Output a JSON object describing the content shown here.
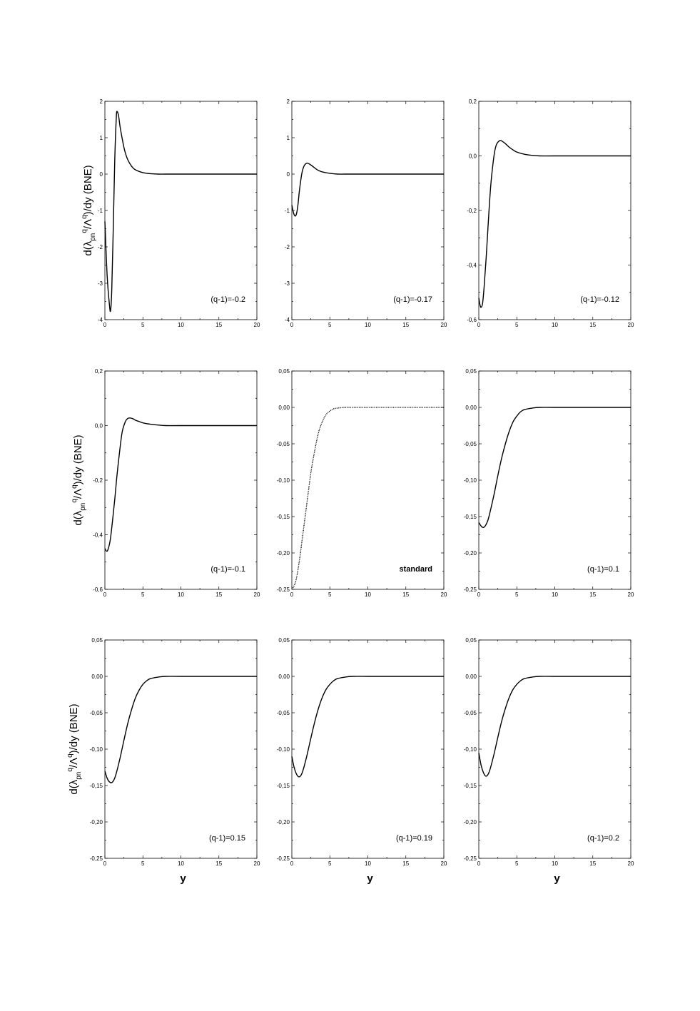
{
  "y_axis_labels": [
    {
      "row": 0,
      "text": "d(λpn^q/Λ^q)/dy  (BNE)",
      "main": "d(λ",
      "sub": "pn",
      "sup1": "q",
      "mid": "/Λ",
      "sup2": "q",
      "tail": ")/dy  (BNE)"
    },
    {
      "row": 1,
      "text": "d(λpn^q/Λ^q)/dy  (BNE)",
      "main": "d(λ",
      "sub": "pn",
      "sup1": "q",
      "mid": "/Λ",
      "sup2": "q",
      "tail": ")/dy  (BNE)"
    },
    {
      "row": 2,
      "text": "d(λpn^q/Λ^q)/dy  (BNE)",
      "main": "d(λ",
      "sub": "pn",
      "sup1": "q",
      "mid": "/Λ",
      "sup2": "q",
      "tail": ")/dy  (BNE)"
    }
  ],
  "x_axis_labels": [
    "y",
    "y",
    "y"
  ],
  "chart_data": [
    {
      "type": "line",
      "annotation": "(q-1)=-0.2",
      "xlim": [
        0,
        20
      ],
      "ylim": [
        -4,
        2
      ],
      "xticks": [
        0,
        5,
        10,
        15,
        20
      ],
      "xtick_labels": [
        "0",
        "5",
        "10",
        "15",
        "20"
      ],
      "yticks": [
        -4,
        -3,
        -2,
        -1,
        0,
        1,
        2
      ],
      "ytick_labels": [
        "-4",
        "-3",
        "-2",
        "-1",
        "0",
        "1",
        "2"
      ],
      "x": [
        0,
        0.3,
        0.6,
        0.75,
        0.9,
        1.1,
        1.3,
        1.5,
        1.6,
        1.8,
        2.0,
        2.3,
        2.6,
        3.0,
        3.5,
        4.0,
        5.0,
        6.0,
        7.0,
        8.0,
        10.0,
        15.0,
        20.0
      ],
      "y": [
        -1.3,
        -2.8,
        -3.6,
        -3.75,
        -3.2,
        -1.5,
        0.4,
        1.55,
        1.72,
        1.6,
        1.3,
        0.95,
        0.65,
        0.4,
        0.22,
        0.12,
        0.04,
        0.01,
        0.0,
        0.0,
        0.0,
        0.0,
        0.0
      ]
    },
    {
      "type": "line",
      "annotation": "(q-1)=-0.17",
      "xlim": [
        0,
        20
      ],
      "ylim": [
        -4,
        2
      ],
      "xticks": [
        0,
        5,
        10,
        15,
        20
      ],
      "xtick_labels": [
        "0",
        "5",
        "10",
        "15",
        "20"
      ],
      "yticks": [
        -4,
        -3,
        -2,
        -1,
        0,
        1,
        2
      ],
      "ytick_labels": [
        "-4",
        "-3",
        "-2",
        "-1",
        "0",
        "1",
        "2"
      ],
      "x": [
        0,
        0.2,
        0.4,
        0.6,
        0.8,
        1.0,
        1.3,
        1.6,
        2.0,
        2.5,
        3.0,
        3.5,
        4.0,
        5.0,
        6.0,
        7.0,
        8.0,
        10.0,
        15.0,
        20.0
      ],
      "y": [
        -0.85,
        -1.05,
        -1.15,
        -1.1,
        -0.85,
        -0.45,
        0.0,
        0.22,
        0.3,
        0.25,
        0.17,
        0.1,
        0.06,
        0.02,
        0.0,
        0.0,
        0.0,
        0.0,
        0.0,
        0.0
      ]
    },
    {
      "type": "line",
      "annotation": "(q-1)=-0.12",
      "xlim": [
        0,
        20
      ],
      "ylim": [
        -0.6,
        0.2
      ],
      "xticks": [
        0,
        5,
        10,
        15,
        20
      ],
      "xtick_labels": [
        "0",
        "5",
        "10",
        "15",
        "20"
      ],
      "yticks": [
        -0.6,
        -0.4,
        -0.2,
        0.0,
        0.2
      ],
      "ytick_labels": [
        "-0,6",
        "-0,4",
        "-0,2",
        "0,0",
        "0,2"
      ],
      "x": [
        0,
        0.15,
        0.3,
        0.5,
        0.7,
        1.0,
        1.3,
        1.6,
        2.0,
        2.3,
        2.7,
        3.0,
        3.5,
        4.0,
        4.5,
        5.0,
        6.0,
        7.0,
        8.0,
        10.0,
        15.0,
        20.0
      ],
      "y": [
        -0.52,
        -0.545,
        -0.555,
        -0.54,
        -0.48,
        -0.36,
        -0.22,
        -0.1,
        0.0,
        0.04,
        0.055,
        0.055,
        0.045,
        0.032,
        0.022,
        0.014,
        0.006,
        0.002,
        0.0,
        0.0,
        0.0,
        0.0
      ]
    },
    {
      "type": "line",
      "annotation": "(q-1)=-0.1",
      "xlim": [
        0,
        20
      ],
      "ylim": [
        -0.6,
        0.2
      ],
      "xticks": [
        0,
        5,
        10,
        15,
        20
      ],
      "xtick_labels": [
        "0",
        "5",
        "10",
        "15",
        "20"
      ],
      "yticks": [
        -0.6,
        -0.4,
        -0.2,
        0.0,
        0.2
      ],
      "ytick_labels": [
        "-0,6",
        "-0,4",
        "-0,2",
        "0,0",
        "0,2"
      ],
      "x": [
        0,
        0.2,
        0.4,
        0.7,
        1.0,
        1.3,
        1.6,
        2.0,
        2.3,
        2.7,
        3.0,
        3.3,
        3.7,
        4.0,
        4.5,
        5.0,
        6.0,
        7.0,
        8.0,
        10.0,
        15.0,
        20.0
      ],
      "y": [
        -0.45,
        -0.46,
        -0.455,
        -0.42,
        -0.35,
        -0.27,
        -0.18,
        -0.08,
        -0.02,
        0.015,
        0.026,
        0.028,
        0.025,
        0.02,
        0.015,
        0.01,
        0.005,
        0.002,
        0.0,
        0.0,
        0.0,
        0.0
      ]
    },
    {
      "type": "line",
      "annotation": "standard",
      "style": "dotted",
      "xlim": [
        0,
        20
      ],
      "ylim": [
        -0.25,
        0.05
      ],
      "xticks": [
        0,
        5,
        10,
        15,
        20
      ],
      "xtick_labels": [
        "0",
        "5",
        "10",
        "15",
        "20"
      ],
      "yticks": [
        -0.25,
        -0.2,
        -0.15,
        -0.1,
        -0.05,
        0.0,
        0.05
      ],
      "ytick_labels": [
        "-0,25",
        "-0,20",
        "-0,15",
        "-0,10",
        "-0,05",
        "0,00",
        "0,05"
      ],
      "x": [
        0,
        0.3,
        0.6,
        1.0,
        1.5,
        2.0,
        2.5,
        3.0,
        3.5,
        4.0,
        4.5,
        5.0,
        5.5,
        6.0,
        7.0,
        8.0,
        10.0,
        15.0,
        20.0
      ],
      "y": [
        -0.25,
        -0.245,
        -0.235,
        -0.21,
        -0.17,
        -0.13,
        -0.09,
        -0.06,
        -0.035,
        -0.02,
        -0.01,
        -0.005,
        -0.002,
        -0.001,
        0.0,
        0.0,
        0.0,
        0.0,
        0.0
      ]
    },
    {
      "type": "line",
      "annotation": "(q-1)=0.1",
      "xlim": [
        0,
        20
      ],
      "ylim": [
        -0.25,
        0.05
      ],
      "xticks": [
        0,
        5,
        10,
        15,
        20
      ],
      "xtick_labels": [
        "0",
        "5",
        "10",
        "15",
        "20"
      ],
      "yticks": [
        -0.25,
        -0.2,
        -0.15,
        -0.1,
        -0.05,
        0.0,
        0.05
      ],
      "ytick_labels": [
        "-0,25",
        "-0,20",
        "-0,15",
        "-0,10",
        "-0,05",
        "0,00",
        "0,05"
      ],
      "x": [
        0,
        0.3,
        0.6,
        0.9,
        1.2,
        1.5,
        2.0,
        2.5,
        3.0,
        3.5,
        4.0,
        4.5,
        5.0,
        5.5,
        6.0,
        7.0,
        8.0,
        10.0,
        15.0,
        20.0
      ],
      "y": [
        -0.158,
        -0.163,
        -0.165,
        -0.162,
        -0.155,
        -0.143,
        -0.12,
        -0.094,
        -0.07,
        -0.05,
        -0.033,
        -0.02,
        -0.012,
        -0.006,
        -0.003,
        -0.001,
        0.0,
        0.0,
        0.0,
        0.0
      ]
    },
    {
      "type": "line",
      "annotation": "(q-1)=0.15",
      "xlim": [
        0,
        20
      ],
      "ylim": [
        -0.25,
        0.05
      ],
      "xticks": [
        0,
        5,
        10,
        15,
        20
      ],
      "xtick_labels": [
        "0",
        "5",
        "10",
        "15",
        "20"
      ],
      "yticks": [
        -0.25,
        -0.2,
        -0.15,
        -0.1,
        -0.05,
        0.0,
        0.05
      ],
      "ytick_labels": [
        "-0,25",
        "-0,20",
        "-0,15",
        "-0,10",
        "-0,05",
        "0,00",
        "0,05"
      ],
      "x": [
        0,
        0.3,
        0.6,
        0.9,
        1.2,
        1.5,
        2.0,
        2.5,
        3.0,
        3.5,
        4.0,
        4.5,
        5.0,
        5.5,
        6.0,
        7.0,
        8.0,
        10.0,
        15.0,
        20.0
      ],
      "y": [
        -0.13,
        -0.14,
        -0.145,
        -0.146,
        -0.142,
        -0.133,
        -0.112,
        -0.088,
        -0.065,
        -0.046,
        -0.03,
        -0.019,
        -0.011,
        -0.006,
        -0.003,
        -0.001,
        0.0,
        0.0,
        0.0,
        0.0
      ]
    },
    {
      "type": "line",
      "annotation": "(q-1)=0.19",
      "xlim": [
        0,
        20
      ],
      "ylim": [
        -0.25,
        0.05
      ],
      "xticks": [
        0,
        5,
        10,
        15,
        20
      ],
      "xtick_labels": [
        "0",
        "5",
        "10",
        "15",
        "20"
      ],
      "yticks": [
        -0.25,
        -0.2,
        -0.15,
        -0.1,
        -0.05,
        0.0,
        0.05
      ],
      "ytick_labels": [
        "-0,25",
        "-0,20",
        "-0,15",
        "-0,10",
        "-0,05",
        "0,00",
        "0,05"
      ],
      "x": [
        0,
        0.3,
        0.6,
        0.9,
        1.2,
        1.5,
        2.0,
        2.5,
        3.0,
        3.5,
        4.0,
        4.5,
        5.0,
        5.5,
        6.0,
        7.0,
        8.0,
        10.0,
        15.0,
        20.0
      ],
      "y": [
        -0.11,
        -0.125,
        -0.134,
        -0.138,
        -0.136,
        -0.128,
        -0.108,
        -0.085,
        -0.063,
        -0.044,
        -0.029,
        -0.018,
        -0.011,
        -0.006,
        -0.003,
        -0.001,
        0.0,
        0.0,
        0.0,
        0.0
      ]
    },
    {
      "type": "line",
      "annotation": "(q-1)=0.2",
      "xlim": [
        0,
        20
      ],
      "ylim": [
        -0.25,
        0.05
      ],
      "xticks": [
        0,
        5,
        10,
        15,
        20
      ],
      "xtick_labels": [
        "0",
        "5",
        "10",
        "15",
        "20"
      ],
      "yticks": [
        -0.25,
        -0.2,
        -0.15,
        -0.1,
        -0.05,
        0.0,
        0.05
      ],
      "ytick_labels": [
        "-0,25",
        "-0,20",
        "-0,15",
        "-0,10",
        "-0,05",
        "0,00",
        "0,05"
      ],
      "x": [
        0,
        0.3,
        0.6,
        0.9,
        1.2,
        1.5,
        2.0,
        2.5,
        3.0,
        3.5,
        4.0,
        4.5,
        5.0,
        5.5,
        6.0,
        7.0,
        8.0,
        10.0,
        15.0,
        20.0
      ],
      "y": [
        -0.105,
        -0.122,
        -0.132,
        -0.137,
        -0.135,
        -0.127,
        -0.107,
        -0.084,
        -0.062,
        -0.044,
        -0.029,
        -0.018,
        -0.011,
        -0.006,
        -0.003,
        -0.001,
        0.0,
        0.0,
        0.0,
        0.0
      ]
    }
  ]
}
